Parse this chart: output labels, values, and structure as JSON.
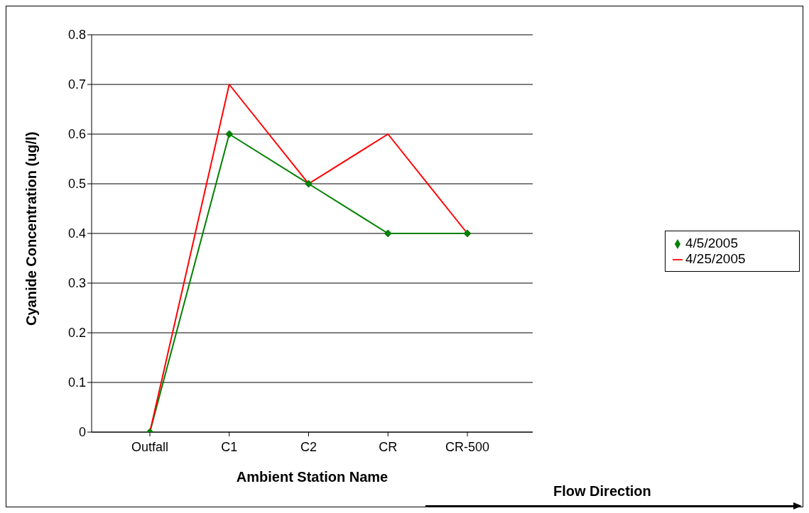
{
  "chart_data": {
    "type": "line",
    "xlabel": "Ambient Station Name",
    "ylabel": "Cyanide Concentration (ug/l)",
    "categories": [
      "Outfall",
      "C1",
      "C2",
      "CR",
      "CR-500"
    ],
    "series": [
      {
        "name": "4/5/2005",
        "color": "#008000",
        "values": [
          0,
          0.6,
          0.5,
          0.4,
          0.4
        ],
        "marker": "diamond"
      },
      {
        "name": "4/25/2005",
        "color": "#ff0000",
        "values": [
          0,
          0.7,
          0.5,
          0.6,
          0.4
        ],
        "marker": "none"
      }
    ],
    "ylim": [
      0,
      0.8
    ],
    "yticks": [
      0,
      0.1,
      0.2,
      0.3,
      0.4,
      0.5,
      0.6,
      0.7,
      0.8
    ],
    "grid": "y",
    "legend": "right",
    "line_style": "solid",
    "annotations": [
      "Flow Direction"
    ]
  }
}
